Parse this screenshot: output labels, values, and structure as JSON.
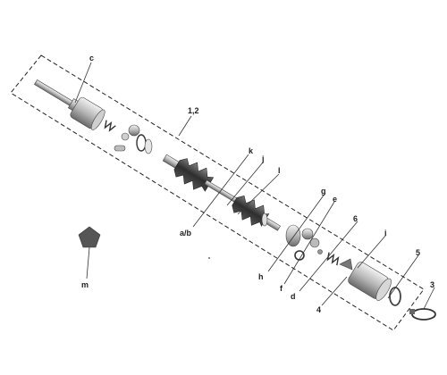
{
  "labels": {
    "c": "c",
    "k": "k",
    "j": "j",
    "l": "l",
    "g": "g",
    "e": "e",
    "six": "6",
    "i": "i",
    "five": "5",
    "three": "3",
    "one_two": "1,2",
    "ab": "a/b",
    "h": "h",
    "f": "f",
    "d": "d",
    "four": "4",
    "m": "m"
  },
  "colors": {
    "line": "#222222",
    "metal_light": "#d9d9d9",
    "metal_dark": "#6e6e6e",
    "boot": "#3a3a3a",
    "bracket": "#555555"
  }
}
